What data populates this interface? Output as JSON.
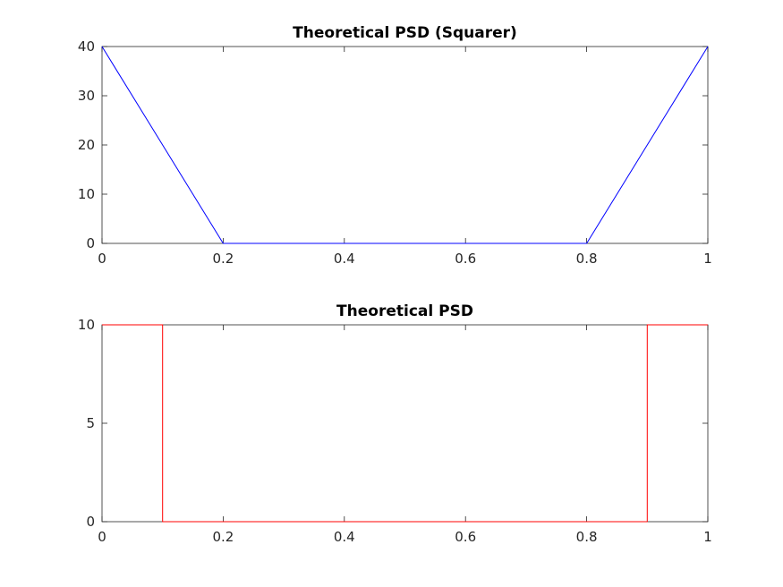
{
  "chart_data": [
    {
      "type": "line",
      "title": "Theoretical PSD (Squarer)",
      "xlabel": "",
      "ylabel": "",
      "xlim": [
        0,
        1
      ],
      "ylim": [
        0,
        40
      ],
      "xticks": [
        0,
        0.2,
        0.4,
        0.6,
        0.8,
        1
      ],
      "xtick_labels": [
        "0",
        "0.2",
        "0.4",
        "0.6",
        "0.8",
        "1"
      ],
      "yticks": [
        0,
        10,
        20,
        30,
        40
      ],
      "ytick_labels": [
        "0",
        "10",
        "20",
        "30",
        "40"
      ],
      "grid": false,
      "series": [
        {
          "color": "#0000ff",
          "x": [
            0,
            0.2,
            0.8,
            1
          ],
          "y": [
            40,
            0,
            0,
            40
          ]
        }
      ]
    },
    {
      "type": "line",
      "title": "Theoretical PSD",
      "xlabel": "",
      "ylabel": "",
      "xlim": [
        0,
        1
      ],
      "ylim": [
        0,
        10
      ],
      "xticks": [
        0,
        0.2,
        0.4,
        0.6,
        0.8,
        1
      ],
      "xtick_labels": [
        "0",
        "0.2",
        "0.4",
        "0.6",
        "0.8",
        "1"
      ],
      "yticks": [
        0,
        5,
        10
      ],
      "ytick_labels": [
        "0",
        "5",
        "10"
      ],
      "grid": false,
      "series": [
        {
          "color": "#ff0000",
          "x": [
            0,
            0.1,
            0.1,
            0.9,
            0.9,
            1
          ],
          "y": [
            10,
            10,
            0,
            0,
            10,
            10
          ]
        }
      ]
    }
  ]
}
